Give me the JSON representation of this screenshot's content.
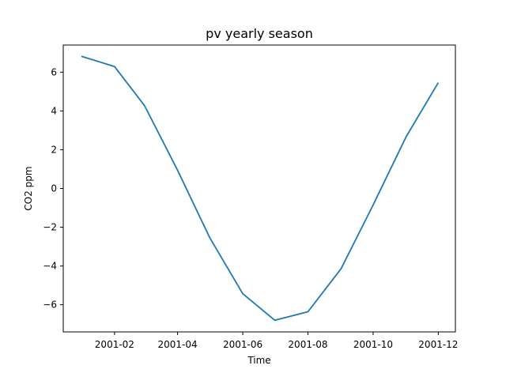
{
  "chart_data": {
    "type": "line",
    "title": "pv yearly season",
    "xlabel": "Time",
    "ylabel": "CO2 ppm",
    "x": [
      "2001-01-01",
      "2001-02-01",
      "2001-03-01",
      "2001-04-01",
      "2001-05-01",
      "2001-06-01",
      "2001-07-01",
      "2001-08-01",
      "2001-09-01",
      "2001-10-01",
      "2001-11-01",
      "2001-12-01"
    ],
    "series": [
      {
        "values": [
          6.82,
          6.29,
          4.28,
          0.94,
          -2.53,
          -5.43,
          -6.8,
          -6.36,
          -4.14,
          -0.85,
          2.68,
          5.46
        ],
        "color": "#1f77b4"
      }
    ],
    "x_ticks": [
      "2001-02",
      "2001-04",
      "2001-06",
      "2001-08",
      "2001-10",
      "2001-12"
    ],
    "y_ticks": [
      -6,
      -4,
      -2,
      0,
      2,
      4,
      6
    ],
    "xlim": [
      "2000-12-15",
      "2001-12-17"
    ],
    "ylim": [
      -7.4,
      7.4
    ],
    "grid": false
  }
}
